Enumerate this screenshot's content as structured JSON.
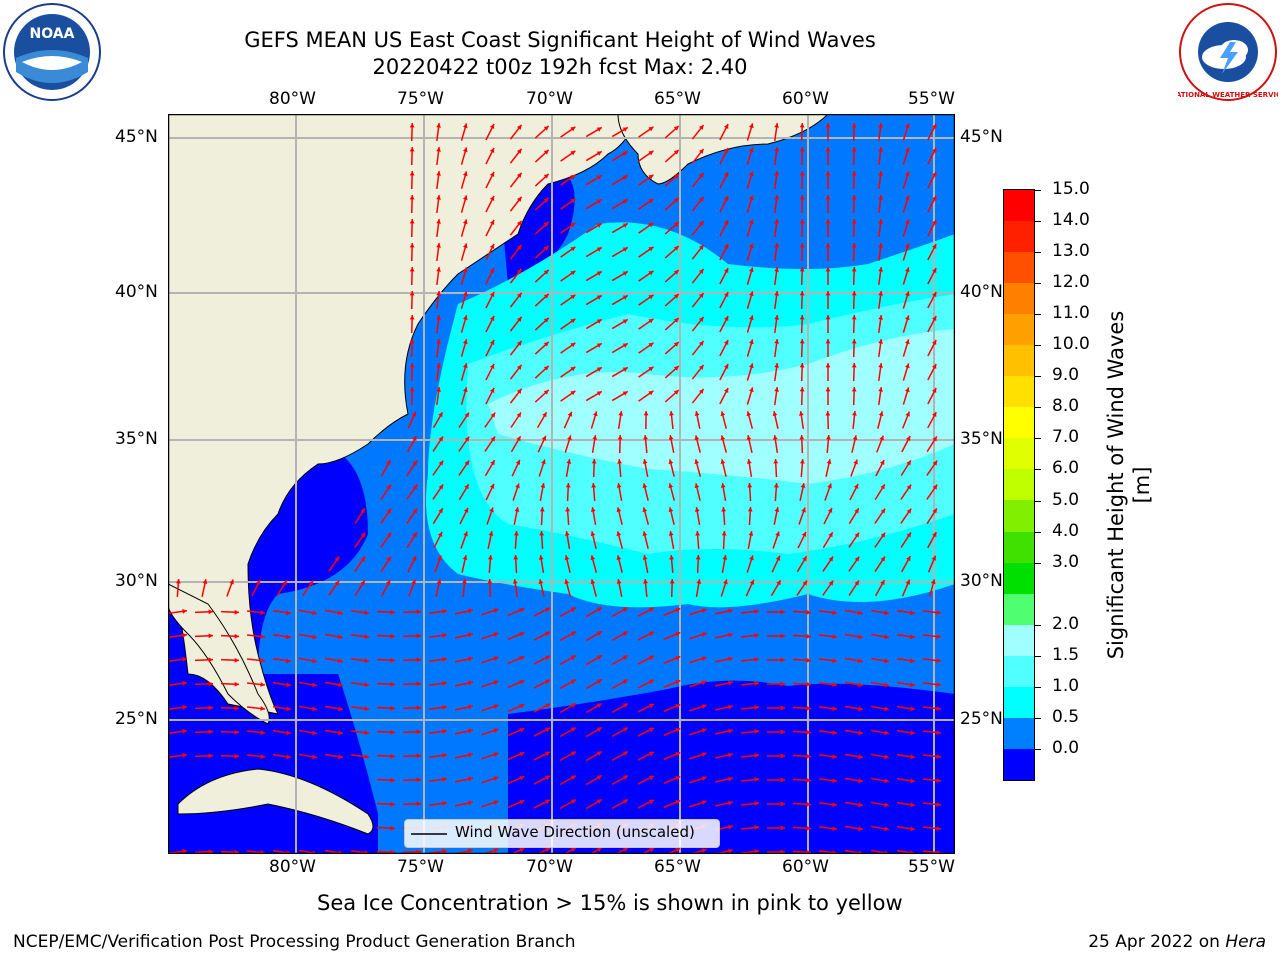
{
  "header": {
    "title_line1": "GEFS MEAN US East Coast Significant Height of Wind Waves",
    "title_line2": "20220422 t00z 192h fcst   Max: 2.40"
  },
  "logos": {
    "left": {
      "name": "noaa-logo",
      "text": "NOAA"
    },
    "right": {
      "name": "nws-logo",
      "text": "NATIONAL WEATHER SERVICE"
    }
  },
  "map": {
    "lon_labels": [
      "80°W",
      "75°W",
      "70°W",
      "65°W",
      "60°W",
      "55°W"
    ],
    "lat_labels": [
      "45°N",
      "40°N",
      "35°N",
      "30°N",
      "25°N"
    ],
    "legend_label": "Wind Wave Direction (unscaled)",
    "colors": {
      "land": "#efefdc",
      "ocean_low": "#0000ff",
      "ocean_mid": "#0078ff",
      "arrow": "#ff0000",
      "grid": "#b4b4b4"
    }
  },
  "colorbar": {
    "label": "Significant Height of Wind Waves [m]",
    "ticks": [
      "15.0",
      "14.0",
      "13.0",
      "12.0",
      "11.0",
      "10.0",
      "9.0",
      "8.0",
      "7.0",
      "6.0",
      "5.0",
      "4.0",
      "3.0",
      "2.0",
      "1.5",
      "1.0",
      "0.5",
      "0.0"
    ],
    "colors_top_to_bottom": [
      "#ff0000",
      "#ff2000",
      "#ff5000",
      "#ff8000",
      "#ffa000",
      "#ffc000",
      "#ffe000",
      "#ffff00",
      "#e0ff00",
      "#c0ff00",
      "#80f000",
      "#40e000",
      "#00e000",
      "#50ff70",
      "#a0ffff",
      "#50ffff",
      "#00ffff",
      "#0080ff",
      "#0000ff"
    ]
  },
  "caption": "Sea Ice Concentration > 15% is shown in pink to yellow",
  "footer": {
    "left": "NCEP/EMC/Verification Post Processing Product Generation Branch",
    "right_date": "25 Apr 2022 on ",
    "right_host": "Hera"
  }
}
